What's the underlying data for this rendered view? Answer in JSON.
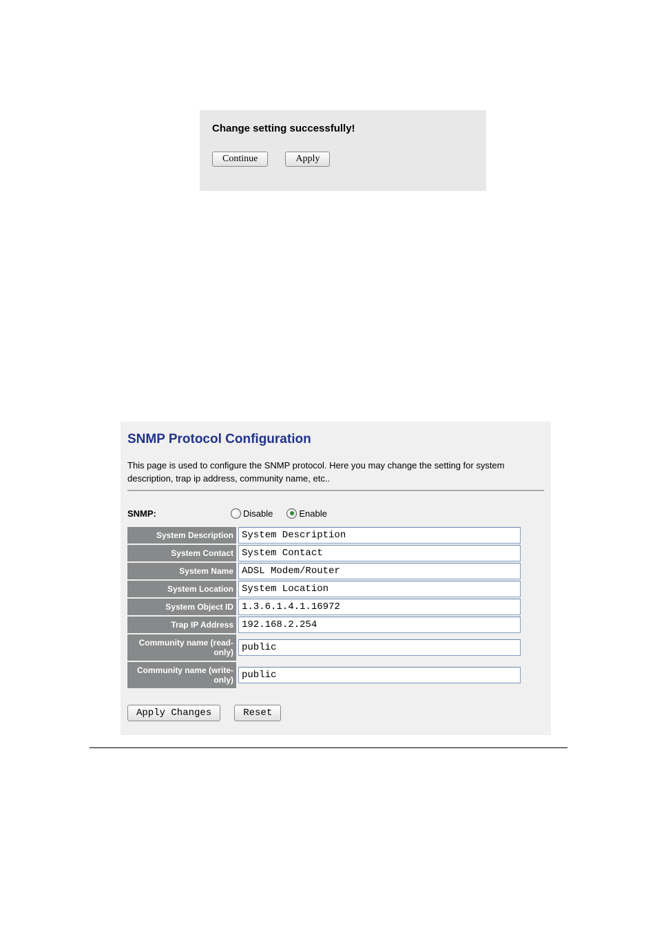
{
  "topPanel": {
    "heading": "Change setting successfully!",
    "continueLabel": "Continue",
    "applyLabel": "Apply"
  },
  "main": {
    "title": "SNMP Protocol Configuration",
    "description": "This page is used to configure the SNMP protocol. Here you may change the setting for system description, trap ip address, community name, etc..",
    "snmpLabel": "SNMP:",
    "disableLabel": "Disable",
    "enableLabel": "Enable",
    "snmpSelected": "enable",
    "fields": {
      "systemDescription": {
        "label": "System Description",
        "value": "System Description"
      },
      "systemContact": {
        "label": "System Contact",
        "value": "System Contact"
      },
      "systemName": {
        "label": "System Name",
        "value": "ADSL Modem/Router"
      },
      "systemLocation": {
        "label": "System Location",
        "value": "System Location"
      },
      "systemObjectId": {
        "label": "System Object ID",
        "value": "1.3.6.1.4.1.16972"
      },
      "trapIpAddress": {
        "label": "Trap IP Address",
        "value": "192.168.2.254"
      },
      "communityRead": {
        "label": "Community name (read-only)",
        "value": "public"
      },
      "communityWrite": {
        "label": "Community name (write-only)",
        "value": "public"
      }
    },
    "applyChangesLabel": "Apply Changes",
    "resetLabel": "Reset"
  },
  "colors": {
    "panelBg": "#e8e8e8",
    "titleColor": "#223388",
    "labelCellBg": "#88898a",
    "labelCellText": "#ffffff",
    "inputBorder": "#7d9ec0"
  }
}
